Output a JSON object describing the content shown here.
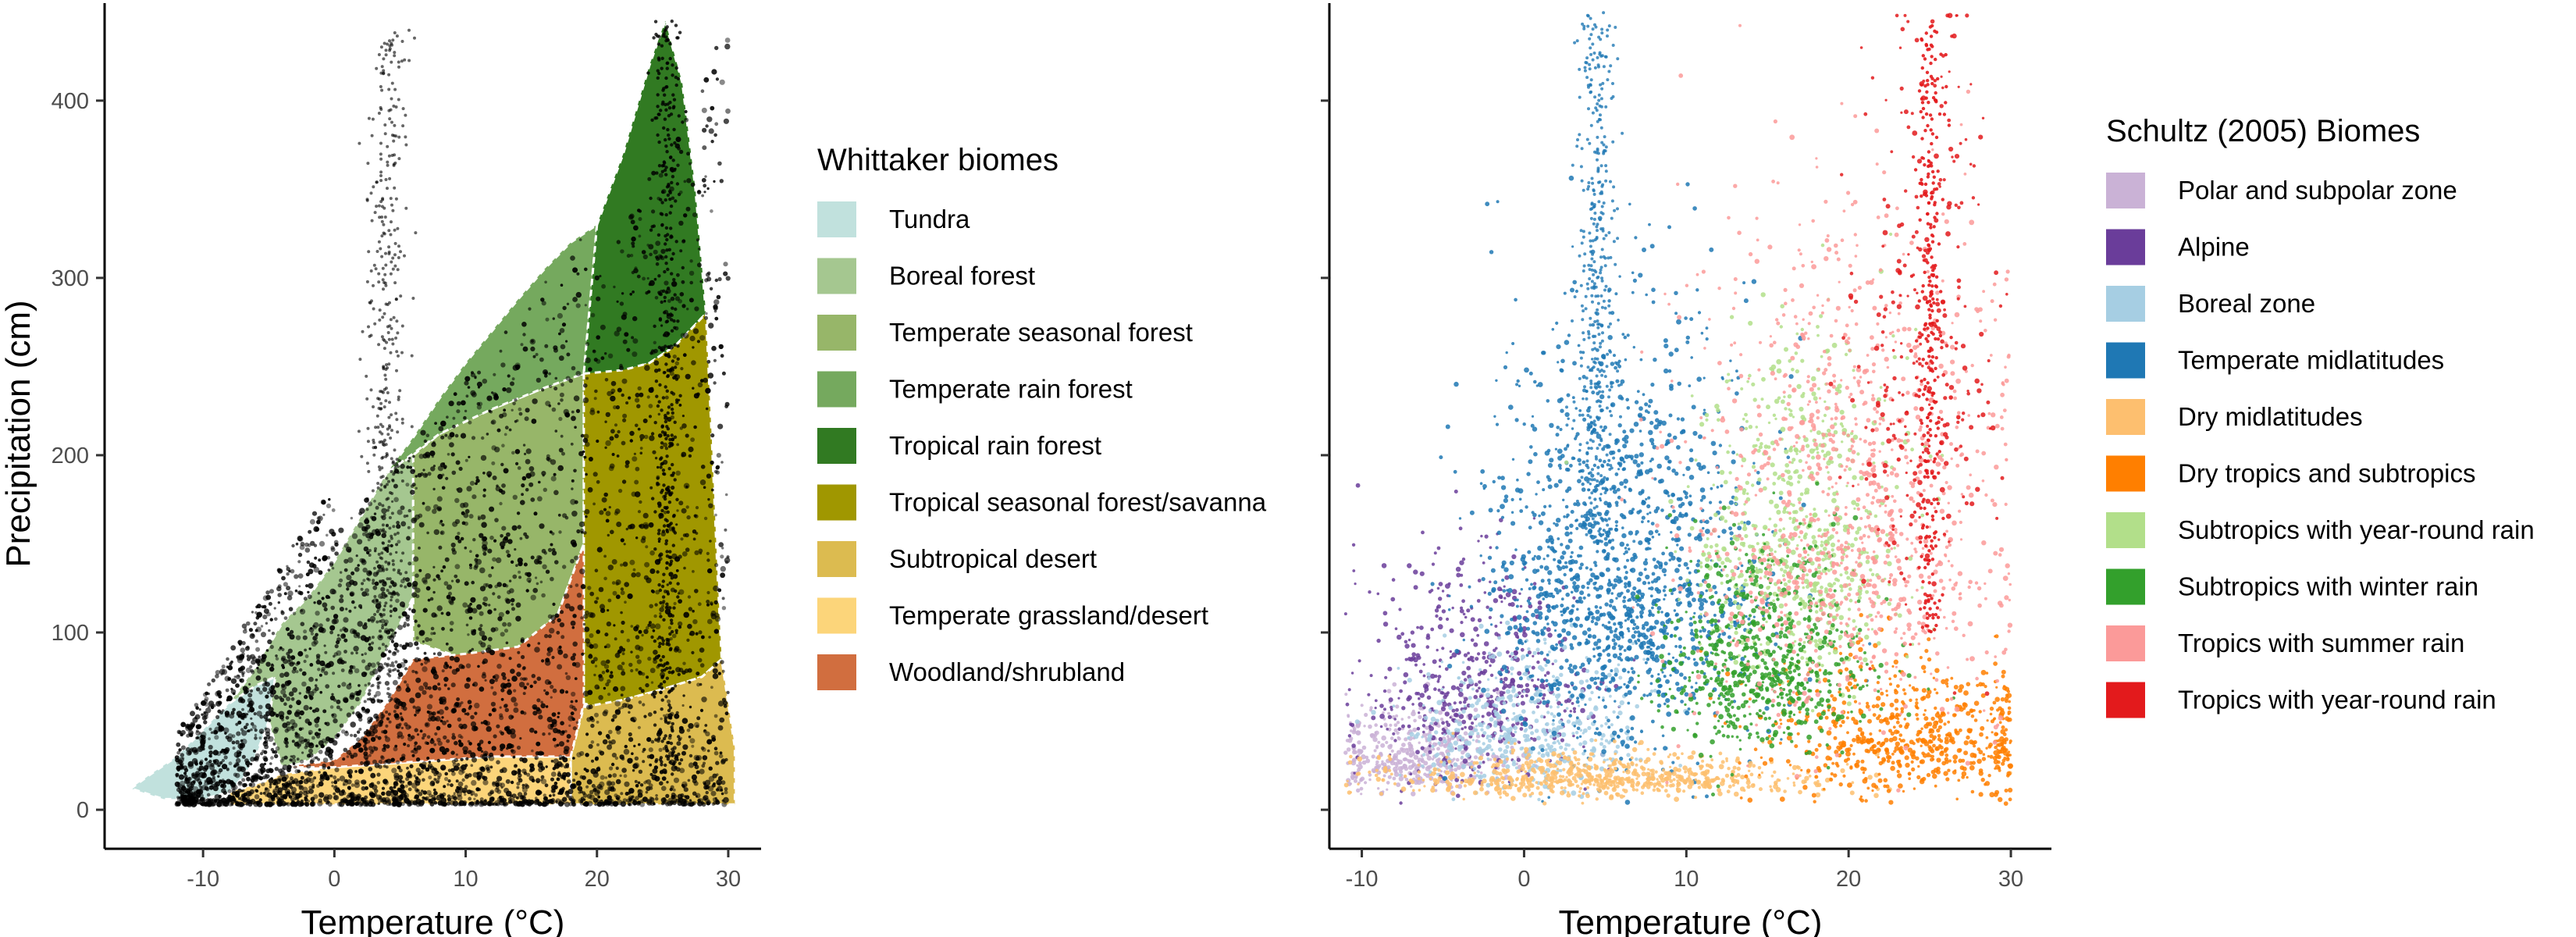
{
  "chart_data": [
    {
      "type": "scatter",
      "title": "",
      "xlabel": "Temperature (°C)",
      "ylabel": "Precipitation (cm)",
      "xlim": [
        -17.5,
        32.5
      ],
      "ylim": [
        -22,
        455
      ],
      "xticks": [
        -10,
        0,
        10,
        20,
        30
      ],
      "yticks": [
        0,
        100,
        200,
        300,
        400
      ],
      "grid": false,
      "legend": {
        "title": "Whittaker biomes",
        "placement": "right",
        "entries": [
          {
            "label": "Tundra",
            "color": "#C1E1DD"
          },
          {
            "label": "Boreal forest",
            "color": "#A5C790"
          },
          {
            "label": "Temperate seasonal forest",
            "color": "#97B669"
          },
          {
            "label": "Temperate rain forest",
            "color": "#75A95E"
          },
          {
            "label": "Tropical rain forest",
            "color": "#317A22"
          },
          {
            "label": "Tropical seasonal forest/savanna",
            "color": "#A09700"
          },
          {
            "label": "Subtropical desert",
            "color": "#DCBB50"
          },
          {
            "label": "Temperate grassland/desert",
            "color": "#FCD57A"
          },
          {
            "label": "Woodland/shrubland",
            "color": "#D16E3F"
          }
        ]
      },
      "biome_regions": [
        {
          "biome": "Tundra",
          "polygon": [
            [
              -15.5,
              12
            ],
            [
              -14,
              20
            ],
            [
              -12,
              30
            ],
            [
              -10,
              45
            ],
            [
              -8,
              60
            ],
            [
              -6,
              75
            ],
            [
              -5,
              88
            ],
            [
              -4.5,
              75
            ],
            [
              -5,
              50
            ],
            [
              -6,
              30
            ],
            [
              -7,
              18
            ],
            [
              -8,
              10
            ],
            [
              -10,
              6
            ],
            [
              -13,
              6
            ]
          ]
        },
        {
          "biome": "Boreal forest",
          "polygon": [
            [
              -8,
              60
            ],
            [
              -6,
              80
            ],
            [
              -4,
              105
            ],
            [
              -2,
              120
            ],
            [
              0,
              140
            ],
            [
              2,
              165
            ],
            [
              4,
              190
            ],
            [
              6,
              205
            ],
            [
              6,
              120
            ],
            [
              4,
              90
            ],
            [
              2,
              60
            ],
            [
              0,
              40
            ],
            [
              -2,
              28
            ],
            [
              -4,
              24
            ],
            [
              -5,
              50
            ],
            [
              -4.5,
              75
            ],
            [
              -6,
              70
            ]
          ]
        },
        {
          "biome": "Temperate seasonal forest",
          "polygon": [
            [
              4,
              190
            ],
            [
              6,
              200
            ],
            [
              8,
              212
            ],
            [
              10,
              220
            ],
            [
              12,
              226
            ],
            [
              14,
              232
            ],
            [
              16,
              238
            ],
            [
              18,
              244
            ],
            [
              19,
              246
            ],
            [
              19,
              150
            ],
            [
              17,
              110
            ],
            [
              14,
              90
            ],
            [
              10,
              85
            ],
            [
              6,
              95
            ],
            [
              6,
              120
            ],
            [
              6,
              205
            ]
          ]
        },
        {
          "biome": "Temperate rain forest",
          "polygon": [
            [
              4,
              190
            ],
            [
              6,
              210
            ],
            [
              8,
              232
            ],
            [
              10,
              252
            ],
            [
              12,
              270
            ],
            [
              14,
              288
            ],
            [
              16,
              305
            ],
            [
              18,
              320
            ],
            [
              20,
              330
            ],
            [
              19,
              246
            ],
            [
              16,
              238
            ],
            [
              12,
              226
            ],
            [
              8,
              212
            ]
          ]
        },
        {
          "biome": "Tropical rain forest",
          "polygon": [
            [
              20,
              330
            ],
            [
              22,
              370
            ],
            [
              24,
              420
            ],
            [
              25.2,
              445
            ],
            [
              26.5,
              410
            ],
            [
              27.5,
              350
            ],
            [
              28.3,
              280
            ],
            [
              26,
              262
            ],
            [
              24,
              252
            ],
            [
              22,
              247
            ],
            [
              20,
              245
            ],
            [
              19,
              246
            ]
          ]
        },
        {
          "biome": "Tropical seasonal forest/savanna",
          "polygon": [
            [
              19,
              246
            ],
            [
              22,
              248
            ],
            [
              24,
              252
            ],
            [
              26,
              262
            ],
            [
              28.3,
              280
            ],
            [
              28.8,
              200
            ],
            [
              29.2,
              130
            ],
            [
              29.5,
              85
            ],
            [
              28,
              75
            ],
            [
              25,
              68
            ],
            [
              22,
              62
            ],
            [
              20,
              58
            ],
            [
              19,
              60
            ],
            [
              19,
              150
            ]
          ]
        },
        {
          "biome": "Subtropical desert",
          "polygon": [
            [
              19,
              58
            ],
            [
              22,
              62
            ],
            [
              25,
              68
            ],
            [
              28,
              75
            ],
            [
              29.5,
              85
            ],
            [
              30,
              60
            ],
            [
              30.5,
              35
            ],
            [
              30.5,
              3
            ],
            [
              25,
              3
            ],
            [
              20,
              3
            ],
            [
              18,
              3
            ],
            [
              18,
              30
            ]
          ]
        },
        {
          "biome": "Temperate grassland/desert",
          "polygon": [
            [
              -8,
              10
            ],
            [
              -6,
              14
            ],
            [
              -4,
              20
            ],
            [
              0,
              24
            ],
            [
              4,
              26
            ],
            [
              8,
              28
            ],
            [
              12,
              30
            ],
            [
              16,
              30
            ],
            [
              18,
              30
            ],
            [
              18,
              3
            ],
            [
              12,
              3
            ],
            [
              6,
              3
            ],
            [
              0,
              3
            ],
            [
              -4,
              3
            ],
            [
              -8,
              3
            ]
          ]
        },
        {
          "biome": "Woodland/shrubland",
          "polygon": [
            [
              -4,
              24
            ],
            [
              0,
              28
            ],
            [
              2,
              40
            ],
            [
              4,
              60
            ],
            [
              6,
              85
            ],
            [
              10,
              88
            ],
            [
              14,
              92
            ],
            [
              17,
              110
            ],
            [
              19,
              150
            ],
            [
              19,
              60
            ],
            [
              18,
              30
            ],
            [
              12,
              30
            ],
            [
              8,
              28
            ],
            [
              4,
              26
            ],
            [
              0,
              24
            ]
          ]
        }
      ],
      "points_description_color": "#000000"
    },
    {
      "type": "scatter",
      "title": "",
      "xlabel": "Temperature (°C)",
      "ylabel": "",
      "xlim": [
        -12,
        32.5
      ],
      "ylim": [
        -22,
        455
      ],
      "xticks": [
        -10,
        0,
        10,
        20,
        30
      ],
      "yticks": [
        0,
        100,
        200,
        300,
        400
      ],
      "show_y_tick_labels": false,
      "grid": false,
      "legend": {
        "title": "Schultz (2005) Biomes",
        "placement": "right",
        "entries": [
          {
            "label": "Polar and subpolar zone",
            "color": "#CAB2D6"
          },
          {
            "label": "Alpine",
            "color": "#6A3D9A"
          },
          {
            "label": "Boreal zone",
            "color": "#A6CEE3"
          },
          {
            "label": "Temperate midlatitudes",
            "color": "#1F78B4"
          },
          {
            "label": "Dry midlatitudes",
            "color": "#FDBF6F"
          },
          {
            "label": "Dry tropics and subtropics",
            "color": "#FF7F00"
          },
          {
            "label": "Subtropics with year-round rain",
            "color": "#B2DF8A"
          },
          {
            "label": "Subtropics with winter rain",
            "color": "#33A02C"
          },
          {
            "label": "Tropics with summer rain",
            "color": "#FB9A99"
          },
          {
            "label": "Tropics with year-round rain",
            "color": "#E31A1C"
          }
        ]
      },
      "point_clusters": [
        {
          "biome": "Polar and subpolar zone",
          "center": [
            -7,
            30
          ],
          "spread": [
            3,
            15
          ],
          "count": 420
        },
        {
          "biome": "Alpine",
          "center": [
            -3,
            70
          ],
          "spread": [
            3.5,
            40
          ],
          "count": 520
        },
        {
          "biome": "Boreal zone",
          "center": [
            0,
            45
          ],
          "spread": [
            3.5,
            25
          ],
          "count": 480
        },
        {
          "biome": "Temperate midlatitudes",
          "center": [
            6,
            130
          ],
          "spread": [
            4,
            75
          ],
          "count": 1500
        },
        {
          "biome": "Dry midlatitudes",
          "center": [
            5,
            18
          ],
          "spread": [
            7,
            8
          ],
          "count": 700
        },
        {
          "biome": "Dry tropics and subtropics",
          "center": [
            24,
            40
          ],
          "spread": [
            4.5,
            25
          ],
          "count": 650
        },
        {
          "biome": "Subtropics with year-round rain",
          "center": [
            17,
            150
          ],
          "spread": [
            3,
            60
          ],
          "count": 700
        },
        {
          "biome": "Subtropics with winter rain",
          "center": [
            15,
            80
          ],
          "spread": [
            3,
            35
          ],
          "count": 700
        },
        {
          "biome": "Tropics with summer rain",
          "center": [
            20,
            160
          ],
          "spread": [
            5,
            90
          ],
          "count": 1100
        },
        {
          "biome": "Tropics with year-round rain",
          "center": [
            24.5,
            240
          ],
          "spread": [
            2,
            100
          ],
          "count": 300
        }
      ]
    }
  ]
}
